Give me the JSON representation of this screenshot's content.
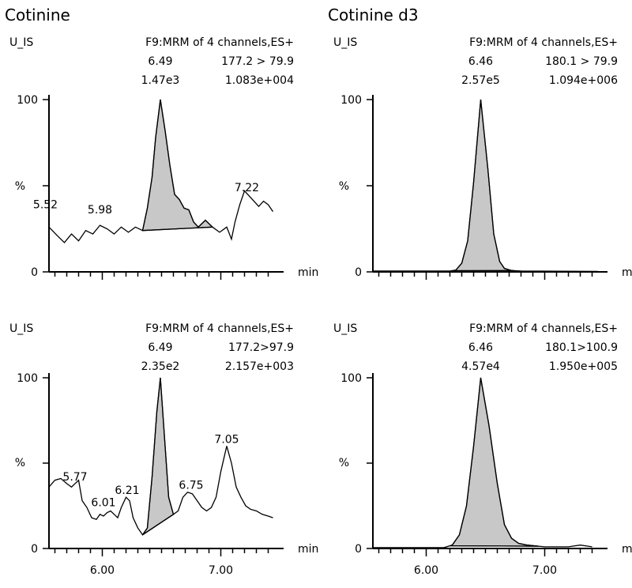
{
  "titles": [
    "Cotinine",
    "Cotinine d3"
  ],
  "chart_data": [
    {
      "type": "area",
      "compound": "Cotinine",
      "label_left": "U_IS",
      "function": "F9:MRM of 4 channels,ES+",
      "rt": "6.49",
      "transition": "177.2 > 79.9",
      "peak_area": "1.47e3",
      "intensity": "1.083e+004",
      "y_tick_labels": [
        "100",
        "%",
        "0"
      ],
      "unit_label": "min",
      "xlim": [
        5.55,
        7.45
      ],
      "ylim": [
        0,
        100
      ],
      "peak_labels": [
        {
          "text": "5.52",
          "x": 5.52,
          "y": 35
        },
        {
          "text": "5.98",
          "x": 5.98,
          "y": 32
        },
        {
          "text": "7.22",
          "x": 7.22,
          "y": 45
        }
      ],
      "trace": [
        [
          5.55,
          26
        ],
        [
          5.62,
          21
        ],
        [
          5.68,
          17
        ],
        [
          5.74,
          22
        ],
        [
          5.8,
          18
        ],
        [
          5.86,
          24
        ],
        [
          5.92,
          22
        ],
        [
          5.98,
          27
        ],
        [
          6.04,
          25
        ],
        [
          6.1,
          22
        ],
        [
          6.16,
          26
        ],
        [
          6.22,
          23
        ],
        [
          6.28,
          26
        ],
        [
          6.34,
          24
        ],
        [
          6.38,
          37
        ],
        [
          6.42,
          55
        ],
        [
          6.45,
          78
        ],
        [
          6.49,
          100
        ],
        [
          6.53,
          82
        ],
        [
          6.57,
          62
        ],
        [
          6.61,
          45
        ],
        [
          6.65,
          42
        ],
        [
          6.69,
          37
        ],
        [
          6.73,
          36
        ],
        [
          6.77,
          29
        ],
        [
          6.81,
          26
        ],
        [
          6.87,
          30
        ],
        [
          6.93,
          26
        ],
        [
          6.99,
          23
        ],
        [
          7.05,
          26
        ],
        [
          7.09,
          19
        ],
        [
          7.12,
          29
        ],
        [
          7.16,
          39
        ],
        [
          7.2,
          47
        ],
        [
          7.24,
          44
        ],
        [
          7.28,
          41
        ],
        [
          7.32,
          38
        ],
        [
          7.36,
          41
        ],
        [
          7.4,
          39
        ],
        [
          7.44,
          35
        ]
      ],
      "integration": {
        "start": 6.34,
        "end": 6.93
      }
    },
    {
      "type": "area",
      "compound": "Cotinine d3",
      "label_left": "U_IS",
      "function": "F9:MRM of 4 channels,ES+",
      "rt": "6.46",
      "transition": "180.1 > 79.9",
      "peak_area": "2.57e5",
      "intensity": "1.094e+006",
      "y_tick_labels": [
        "100",
        "%",
        "0"
      ],
      "unit_label": "min",
      "xlim": [
        5.55,
        7.45
      ],
      "ylim": [
        0,
        100
      ],
      "peak_labels": [],
      "trace": [
        [
          5.55,
          0.5
        ],
        [
          6.2,
          0.5
        ],
        [
          6.25,
          1
        ],
        [
          6.3,
          5
        ],
        [
          6.35,
          18
        ],
        [
          6.4,
          52
        ],
        [
          6.46,
          100
        ],
        [
          6.52,
          60
        ],
        [
          6.57,
          22
        ],
        [
          6.62,
          6
        ],
        [
          6.66,
          2
        ],
        [
          6.72,
          0.8
        ],
        [
          6.8,
          0.5
        ],
        [
          7.45,
          0.3
        ]
      ],
      "integration": {
        "start": 6.22,
        "end": 6.74
      }
    },
    {
      "type": "area",
      "compound": "Cotinine",
      "label_left": "U_IS",
      "function": "F9:MRM of 4 channels,ES+",
      "rt": "6.49",
      "transition": "177.2>97.9",
      "peak_area": "2.35e2",
      "intensity": "2.157e+003",
      "y_tick_labels": [
        "100",
        "%",
        "0"
      ],
      "unit_label": "min",
      "xlim": [
        5.55,
        7.45
      ],
      "ylim": [
        0,
        100
      ],
      "x_tick_labels": [
        {
          "value": 6.0,
          "text": "6.00"
        },
        {
          "value": 7.0,
          "text": "7.00"
        }
      ],
      "peak_labels": [
        {
          "text": "5.77",
          "x": 5.77,
          "y": 38
        },
        {
          "text": "6.01",
          "x": 6.01,
          "y": 23
        },
        {
          "text": "6.21",
          "x": 6.21,
          "y": 30
        },
        {
          "text": "6.75",
          "x": 6.75,
          "y": 33
        },
        {
          "text": "7.05",
          "x": 7.05,
          "y": 60
        }
      ],
      "trace": [
        [
          5.55,
          36
        ],
        [
          5.6,
          40
        ],
        [
          5.65,
          41
        ],
        [
          5.7,
          38
        ],
        [
          5.74,
          36
        ],
        [
          5.77,
          38
        ],
        [
          5.8,
          40
        ],
        [
          5.83,
          28
        ],
        [
          5.87,
          24
        ],
        [
          5.91,
          18
        ],
        [
          5.95,
          17
        ],
        [
          5.98,
          20
        ],
        [
          6.01,
          19
        ],
        [
          6.04,
          21
        ],
        [
          6.07,
          22
        ],
        [
          6.1,
          20
        ],
        [
          6.13,
          18
        ],
        [
          6.16,
          24
        ],
        [
          6.2,
          30
        ],
        [
          6.23,
          28
        ],
        [
          6.26,
          18
        ],
        [
          6.3,
          12
        ],
        [
          6.34,
          8
        ],
        [
          6.38,
          12
        ],
        [
          6.42,
          42
        ],
        [
          6.46,
          80
        ],
        [
          6.49,
          100
        ],
        [
          6.52,
          70
        ],
        [
          6.56,
          30
        ],
        [
          6.6,
          20
        ],
        [
          6.64,
          22
        ],
        [
          6.68,
          30
        ],
        [
          6.72,
          33
        ],
        [
          6.76,
          32
        ],
        [
          6.8,
          28
        ],
        [
          6.84,
          24
        ],
        [
          6.88,
          22
        ],
        [
          6.92,
          24
        ],
        [
          6.96,
          30
        ],
        [
          7.0,
          45
        ],
        [
          7.05,
          60
        ],
        [
          7.09,
          50
        ],
        [
          7.13,
          36
        ],
        [
          7.17,
          30
        ],
        [
          7.21,
          25
        ],
        [
          7.25,
          23
        ],
        [
          7.3,
          22
        ],
        [
          7.35,
          20
        ],
        [
          7.4,
          19
        ],
        [
          7.44,
          18
        ]
      ],
      "integration": {
        "start": 6.34,
        "end": 6.6
      }
    },
    {
      "type": "area",
      "compound": "Cotinine d3",
      "label_left": "U_IS",
      "function": "F9:MRM of 4 channels,ES+",
      "rt": "6.46",
      "transition": "180.1>100.9",
      "peak_area": "4.57e4",
      "intensity": "1.950e+005",
      "y_tick_labels": [
        "100",
        "%",
        "0"
      ],
      "unit_label": "min",
      "xlim": [
        5.55,
        7.45
      ],
      "ylim": [
        0,
        100
      ],
      "x_tick_labels": [
        {
          "value": 6.0,
          "text": "6.00"
        },
        {
          "value": 7.0,
          "text": "7.00"
        }
      ],
      "peak_labels": [],
      "trace": [
        [
          5.55,
          0.5
        ],
        [
          6.15,
          0.5
        ],
        [
          6.22,
          2
        ],
        [
          6.28,
          8
        ],
        [
          6.34,
          25
        ],
        [
          6.4,
          60
        ],
        [
          6.46,
          100
        ],
        [
          6.53,
          72
        ],
        [
          6.6,
          38
        ],
        [
          6.66,
          14
        ],
        [
          6.72,
          6
        ],
        [
          6.78,
          3
        ],
        [
          6.85,
          2
        ],
        [
          7.0,
          1
        ],
        [
          7.2,
          1
        ],
        [
          7.3,
          2
        ],
        [
          7.4,
          1
        ]
      ],
      "integration": {
        "start": 6.2,
        "end": 6.95
      }
    }
  ]
}
